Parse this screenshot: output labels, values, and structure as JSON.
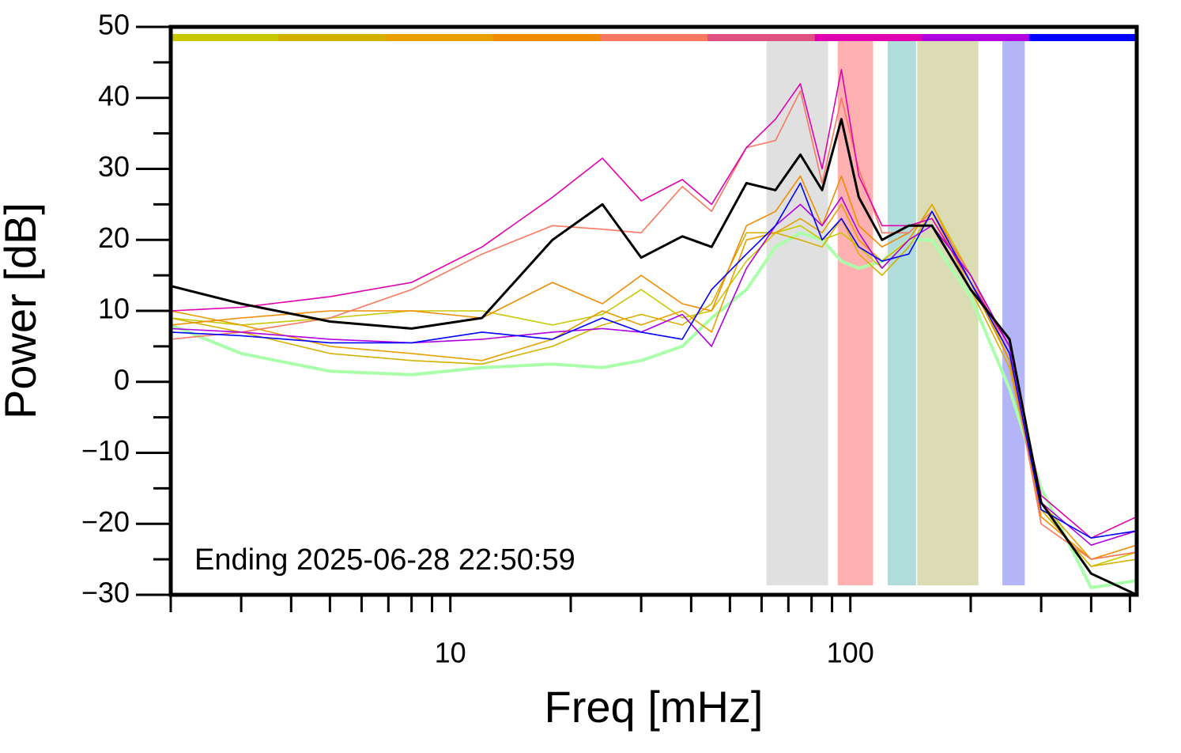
{
  "chart_data": {
    "type": "line",
    "xlabel": "Freq [mHz]",
    "ylabel": "Power [dB]",
    "annotation": "Ending 2025-06-28 22:50:59",
    "log_x": true,
    "xlim": [
      2,
      520
    ],
    "ylim": [
      -30,
      50
    ],
    "xticks": [
      10,
      100
    ],
    "xminorticks": [
      2,
      3,
      4,
      5,
      6,
      7,
      8,
      9,
      20,
      30,
      40,
      50,
      60,
      70,
      80,
      90,
      200,
      300,
      400,
      500
    ],
    "yticks": [
      {
        "value": -30,
        "label": "−30"
      },
      {
        "value": -20,
        "label": "−20"
      },
      {
        "value": -10,
        "label": "−10"
      },
      0,
      10,
      20,
      30,
      40,
      50
    ],
    "yminorticks": [
      -25,
      -15,
      -5,
      5,
      15,
      25,
      35,
      45
    ],
    "colorbar": [
      "#c8c800",
      "#d4b000",
      "#e8a000",
      "#f08c00",
      "#f87860",
      "#e05080",
      "#e000b0",
      "#b000e0",
      "#0000ff"
    ],
    "bands": [
      {
        "range": [
          61.7,
          88
        ],
        "color": "#e0e0e0"
      },
      {
        "range": [
          93,
          114
        ],
        "color": "#ffb0b0"
      },
      {
        "range": [
          124,
          146
        ],
        "color": "#b0dcdc"
      },
      {
        "range": [
          147,
          209
        ],
        "color": "#dcdcb4"
      },
      {
        "range": [
          240,
          273
        ],
        "color": "#b4b4f8"
      }
    ],
    "x": [
      2,
      3,
      5,
      8,
      12,
      18,
      24,
      30,
      38,
      45,
      55,
      65,
      75,
      85,
      95,
      105,
      120,
      140,
      160,
      200,
      250,
      300,
      400,
      520
    ],
    "series": [
      {
        "name": "green",
        "color": "#aaffaa",
        "width": 4,
        "values": [
          8,
          4,
          1.5,
          1,
          2,
          2.5,
          2,
          3,
          5,
          9,
          13,
          19,
          21,
          20,
          17,
          16,
          17,
          20,
          20,
          12,
          -1,
          -15,
          -29,
          -28
        ]
      },
      {
        "name": "yellowgreen",
        "color": "#c8c800",
        "width": 1.6,
        "values": [
          9,
          8,
          9,
          10,
          10,
          8,
          9.5,
          13,
          9,
          10,
          17,
          21,
          22,
          20,
          21,
          19,
          16,
          20,
          25,
          15,
          3,
          -18,
          -26,
          -24
        ]
      },
      {
        "name": "gold",
        "color": "#d4b000",
        "width": 1.6,
        "values": [
          9,
          7,
          4,
          3,
          2.5,
          5,
          8,
          9.5,
          8,
          11,
          21,
          21,
          20,
          19,
          23,
          18,
          15,
          19,
          24,
          13,
          2,
          -18,
          -26,
          -25
        ]
      },
      {
        "name": "orange2",
        "color": "#e8a000",
        "width": 1.6,
        "values": [
          10,
          8,
          5,
          4,
          3,
          6,
          10,
          8,
          10,
          7,
          20,
          21,
          23,
          21,
          25,
          20,
          17,
          20,
          25,
          14,
          3,
          -17,
          -25,
          -24
        ]
      },
      {
        "name": "orange",
        "color": "#f08c00",
        "width": 1.6,
        "values": [
          8,
          9,
          10,
          10,
          9,
          14,
          11,
          15,
          11,
          10,
          22,
          24,
          29,
          22,
          29,
          22,
          19,
          21,
          24,
          14,
          3,
          -19,
          -25,
          -23
        ]
      },
      {
        "name": "salmon",
        "color": "#f87860",
        "width": 1.6,
        "values": [
          6,
          7,
          9,
          13,
          18,
          22,
          21.5,
          21,
          27.5,
          24,
          33,
          34,
          41,
          28,
          40,
          30,
          21,
          21,
          24,
          15,
          4,
          -20,
          -25,
          -24
        ]
      },
      {
        "name": "magenta",
        "color": "#e000b0",
        "width": 1.6,
        "values": [
          10,
          10.5,
          12,
          14,
          19,
          26,
          31.5,
          25.5,
          28.5,
          25,
          33,
          37,
          42,
          30,
          44,
          29,
          22,
          22,
          23,
          14,
          5,
          -16,
          -22,
          -19
        ]
      },
      {
        "name": "purple",
        "color": "#b000e0",
        "width": 1.6,
        "values": [
          7.5,
          7,
          6,
          5.5,
          6,
          7,
          7.5,
          7,
          9.5,
          5,
          16,
          22,
          25,
          22,
          26,
          21,
          16,
          20,
          22,
          15,
          5,
          -17,
          -23,
          -21
        ]
      },
      {
        "name": "blue",
        "color": "#0000ff",
        "width": 1.6,
        "values": [
          7,
          6.5,
          5.5,
          5.5,
          7,
          6,
          9,
          7,
          6,
          13,
          18,
          22,
          28,
          20,
          23,
          19,
          17,
          18,
          24,
          14,
          4,
          -18,
          -22,
          -21
        ]
      },
      {
        "name": "mean",
        "color": "#000000",
        "width": 3,
        "values": [
          13.5,
          11,
          8.5,
          7.5,
          9,
          20,
          25,
          17.5,
          20.5,
          19,
          28,
          27,
          32,
          27,
          37,
          26,
          20,
          22,
          22,
          13,
          6,
          -17,
          -27,
          -30
        ]
      }
    ]
  }
}
